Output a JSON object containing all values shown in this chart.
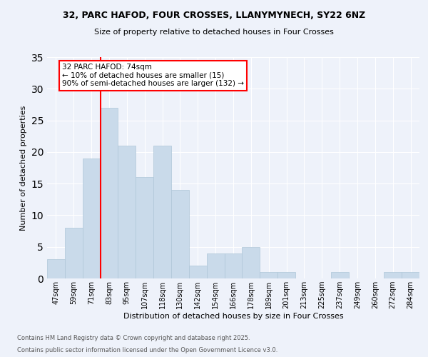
{
  "title_line1": "32, PARC HAFOD, FOUR CROSSES, LLANYMYNECH, SY22 6NZ",
  "title_line2": "Size of property relative to detached houses in Four Crosses",
  "xlabel": "Distribution of detached houses by size in Four Crosses",
  "ylabel": "Number of detached properties",
  "categories": [
    "47sqm",
    "59sqm",
    "71sqm",
    "83sqm",
    "95sqm",
    "107sqm",
    "118sqm",
    "130sqm",
    "142sqm",
    "154sqm",
    "166sqm",
    "178sqm",
    "189sqm",
    "201sqm",
    "213sqm",
    "225sqm",
    "237sqm",
    "249sqm",
    "260sqm",
    "272sqm",
    "284sqm"
  ],
  "values": [
    3,
    8,
    19,
    27,
    21,
    16,
    21,
    14,
    2,
    4,
    4,
    5,
    1,
    1,
    0,
    0,
    1,
    0,
    0,
    1,
    1
  ],
  "bar_color": "#c9daea",
  "bar_edge_color": "#aec6d8",
  "background_color": "#eef2fa",
  "grid_color": "#ffffff",
  "red_line_index": 2,
  "annotation_text": "32 PARC HAFOD: 74sqm\n← 10% of detached houses are smaller (15)\n90% of semi-detached houses are larger (132) →",
  "ylim": [
    0,
    35
  ],
  "yticks": [
    0,
    5,
    10,
    15,
    20,
    25,
    30,
    35
  ],
  "footer_line1": "Contains HM Land Registry data © Crown copyright and database right 2025.",
  "footer_line2": "Contains public sector information licensed under the Open Government Licence v3.0."
}
